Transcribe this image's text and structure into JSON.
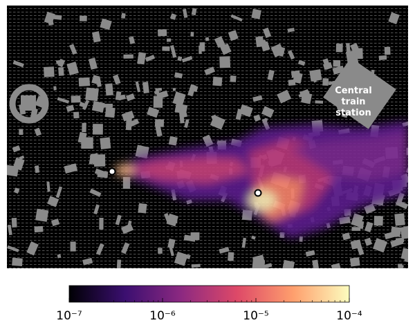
{
  "map": {
    "annotation": "Central train station"
  },
  "colorbar": {
    "scale": "log",
    "lim": [
      1e-07,
      0.0001
    ],
    "ticks": [
      {
        "value": 1e-07,
        "label": "10⁻⁷"
      },
      {
        "value": 1e-06,
        "label": "10⁻⁶"
      },
      {
        "value": 1e-05,
        "label": "10⁻⁵"
      },
      {
        "value": 0.0001,
        "label": "10⁻⁴"
      }
    ],
    "colormap": [
      "#000004",
      "#3b0f70",
      "#8c2981",
      "#de4968",
      "#fe9f6d",
      "#fcfdbf"
    ]
  }
}
